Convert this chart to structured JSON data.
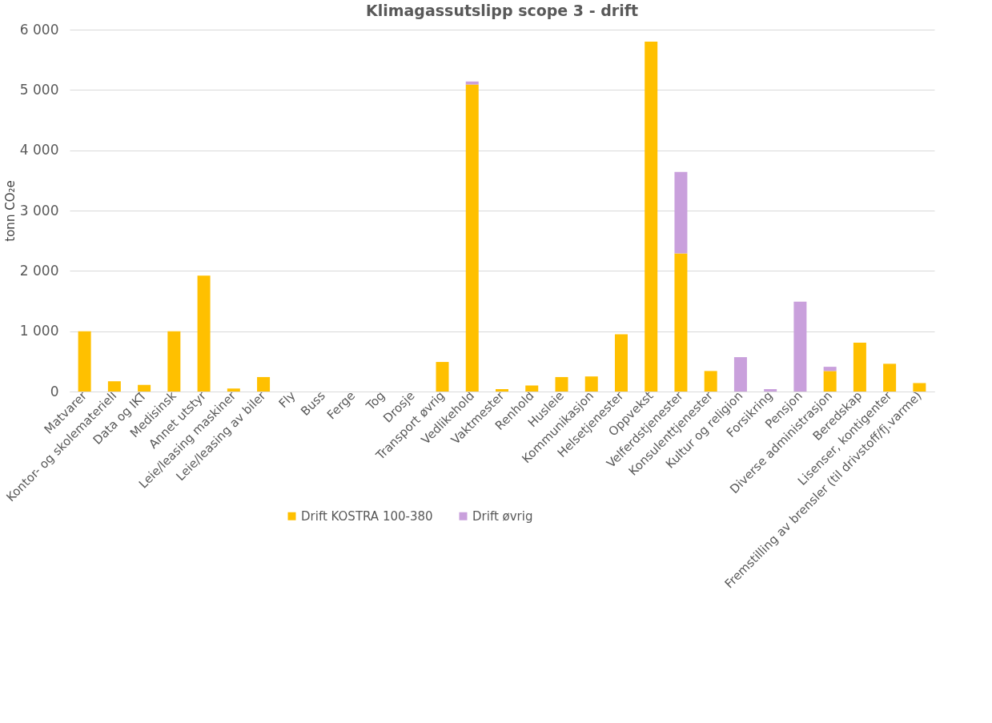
{
  "chart_data": {
    "type": "bar",
    "title": "Klimagassutslipp scope 3 - drift",
    "ylabel": "tonn CO₂e",
    "categories": [
      "Matvarer",
      "Kontor- og skolemateriell",
      "Data og IKT",
      "Medisinsk",
      "Annet utstyr",
      "Leie/leasing maskiner",
      "Leie/leasing av biler",
      "Fly",
      "Buss",
      "Ferge",
      "Tog",
      "Drosje",
      "Transport øvrig",
      "Vedlikehold",
      "Vaktmester",
      "Renhold",
      "Husleie",
      "Kommunikasjon",
      "Helsetjenester",
      "Oppvekst",
      "Velferdstjenester",
      "Konsulenttjenester",
      "Kultur og religion",
      "Forsikring",
      "Pensjon",
      "Diverse administrasjon",
      "Beredskap",
      "Lisenser, kontigenter",
      "Fremstilling av brensler (til drivstoff/fj.varme)"
    ],
    "stacked": true,
    "series": [
      {
        "name": "Drift KOSTRA 100-380",
        "color": "#ffc000",
        "values": [
          1000,
          170,
          110,
          1000,
          1920,
          50,
          240,
          0,
          0,
          0,
          0,
          0,
          490,
          5090,
          40,
          100,
          240,
          250,
          950,
          5800,
          2290,
          340,
          0,
          0,
          0,
          340,
          810,
          460,
          140
        ]
      },
      {
        "name": "Drift øvrig",
        "color": "#c9a0dc",
        "values": [
          null,
          null,
          null,
          null,
          null,
          null,
          null,
          null,
          null,
          null,
          null,
          null,
          null,
          50,
          null,
          null,
          null,
          null,
          null,
          null,
          1350,
          null,
          570,
          40,
          1490,
          70,
          null,
          null,
          null
        ]
      }
    ],
    "ylim": [
      0,
      6000
    ],
    "yticks": [
      0,
      {
        "value": 1000,
        "label": "1 000"
      },
      {
        "value": 2000,
        "label": "2 000"
      },
      {
        "value": 3000,
        "label": "3 000"
      },
      {
        "value": 4000,
        "label": "4 000"
      },
      {
        "value": 5000,
        "label": "5 000"
      },
      {
        "value": 6000,
        "label": "6 000"
      }
    ],
    "grid": "y",
    "legend": "bottom"
  }
}
